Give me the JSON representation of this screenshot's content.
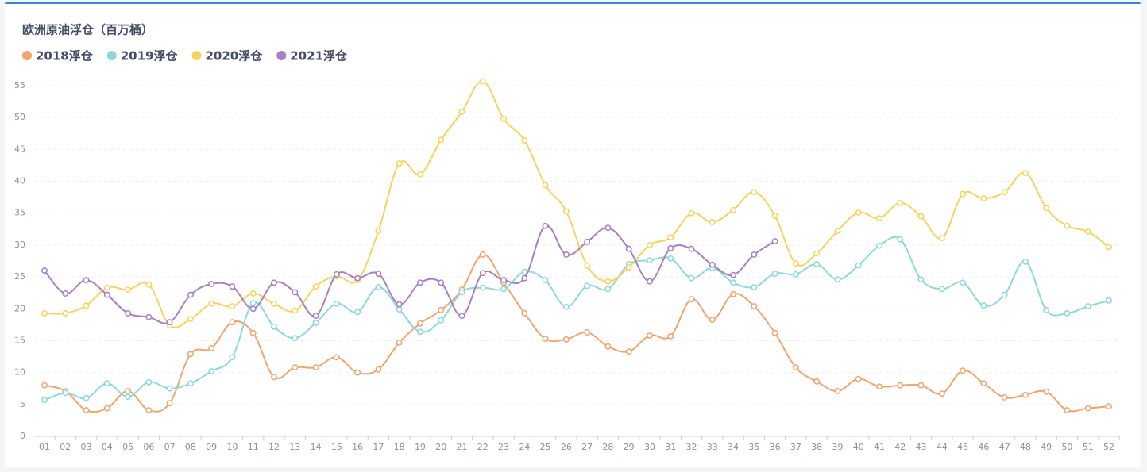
{
  "chart_data": {
    "type": "line",
    "title": "欧洲原油浮仓（百万桶）",
    "categories": [
      "01",
      "02",
      "03",
      "04",
      "05",
      "06",
      "07",
      "08",
      "09",
      "10",
      "11",
      "12",
      "13",
      "14",
      "15",
      "16",
      "17",
      "18",
      "19",
      "20",
      "21",
      "22",
      "23",
      "24",
      "25",
      "26",
      "27",
      "28",
      "29",
      "30",
      "31",
      "32",
      "33",
      "34",
      "35",
      "36",
      "37",
      "38",
      "39",
      "40",
      "41",
      "42",
      "43",
      "44",
      "45",
      "46",
      "47",
      "48",
      "49",
      "50",
      "51",
      "52"
    ],
    "series": [
      {
        "name": "2018浮仓",
        "color": "#f0a56f",
        "values": [
          8.0,
          7.1,
          4.1,
          4.4,
          7.1,
          4.1,
          5.2,
          12.9,
          13.8,
          17.9,
          16.2,
          9.3,
          10.8,
          10.8,
          12.4,
          10.0,
          10.5,
          14.7,
          17.7,
          19.8,
          23.0,
          28.5,
          24.1,
          19.3,
          15.3,
          15.2,
          16.3,
          14.1,
          13.3,
          15.8,
          15.7,
          21.5,
          18.3,
          22.3,
          20.4,
          16.2,
          10.8,
          8.6,
          7.1,
          9.0,
          7.8,
          8.0,
          8.0,
          6.7,
          10.3,
          8.3,
          6.1,
          6.5,
          7.0,
          4.1,
          4.4,
          4.7
        ]
      },
      {
        "name": "2019浮仓",
        "color": "#8ed8d8",
        "values": [
          5.7,
          6.8,
          6.0,
          8.3,
          6.2,
          8.5,
          7.5,
          8.3,
          10.2,
          12.4,
          20.9,
          17.2,
          15.4,
          17.8,
          20.8,
          19.5,
          23.4,
          19.9,
          16.4,
          18.2,
          22.6,
          23.3,
          23.1,
          25.8,
          24.5,
          20.3,
          23.6,
          23.1,
          27.0,
          27.6,
          27.9,
          24.8,
          26.4,
          24.1,
          23.4,
          25.5,
          25.4,
          27.0,
          24.6,
          26.8,
          29.9,
          30.9,
          24.6,
          23.1,
          24.1,
          20.5,
          22.2,
          27.4,
          19.8,
          19.3,
          20.4,
          21.3
        ]
      },
      {
        "name": "2020浮仓",
        "color": "#f6d35e",
        "values": [
          19.3,
          19.3,
          20.5,
          23.3,
          23.0,
          23.8,
          17.4,
          18.4,
          20.8,
          20.4,
          22.4,
          20.8,
          19.7,
          23.5,
          25.1,
          24.5,
          32.2,
          42.8,
          41.1,
          46.5,
          50.9,
          55.7,
          49.8,
          46.4,
          39.4,
          35.3,
          26.8,
          24.3,
          26.5,
          30.0,
          31.2,
          35.0,
          33.6,
          35.5,
          38.3,
          34.6,
          27.1,
          28.7,
          32.2,
          35.1,
          34.2,
          36.6,
          34.5,
          31.1,
          38.0,
          37.3,
          38.3,
          41.3,
          35.8,
          33.0,
          32.1,
          29.7
        ]
      },
      {
        "name": "2021浮仓",
        "color": "#a77fc6",
        "values": [
          26.0,
          22.4,
          24.5,
          22.2,
          19.3,
          18.7,
          17.9,
          22.2,
          23.9,
          23.5,
          20.0,
          24.1,
          22.6,
          18.9,
          25.4,
          24.8,
          25.5,
          20.7,
          24.1,
          24.1,
          18.9,
          25.6,
          24.5,
          24.8,
          33.0,
          28.5,
          30.5,
          32.7,
          29.4,
          24.3,
          29.5,
          29.4,
          26.9,
          25.3,
          28.5,
          30.6,
          null,
          null,
          null,
          null,
          null,
          null,
          null,
          null,
          null,
          null,
          null,
          null,
          null,
          null,
          null,
          null
        ]
      }
    ],
    "ylim": [
      0,
      55
    ],
    "yticks": [
      0,
      5,
      10,
      15,
      20,
      25,
      30,
      35,
      40,
      45,
      50,
      55
    ],
    "grid": true
  }
}
